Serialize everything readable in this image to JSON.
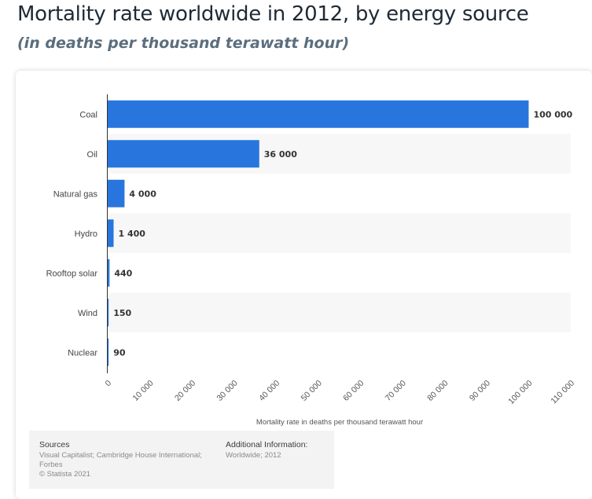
{
  "header": {
    "title": "Mortality rate worldwide in 2012, by energy source",
    "subtitle": "(in deaths per thousand terawatt hour)"
  },
  "chart_data": {
    "type": "bar",
    "orientation": "horizontal",
    "categories": [
      "Coal",
      "Oil",
      "Natural gas",
      "Hydro",
      "Rooftop solar",
      "Wind",
      "Nuclear"
    ],
    "values": [
      100000,
      36000,
      4000,
      1400,
      440,
      150,
      90
    ],
    "value_labels": [
      "100 000",
      "36 000",
      "4 000",
      "1 400",
      "440",
      "150",
      "90"
    ],
    "xlabel": "Mortality rate in deaths per thousand terawatt hour",
    "xlim": [
      0,
      110000
    ],
    "xticks": [
      0,
      10000,
      20000,
      30000,
      40000,
      50000,
      60000,
      70000,
      80000,
      90000,
      100000,
      110000
    ],
    "xtick_labels": [
      "0",
      "10 000",
      "20 000",
      "30 000",
      "40 000",
      "50 000",
      "60 000",
      "70 000",
      "80 000",
      "90 000",
      "100 000",
      "110 000"
    ],
    "bar_color": "#2876dd",
    "stripe_color": "#f7f7f7"
  },
  "footer": {
    "sources_heading": "Sources",
    "sources_lines": [
      "Visual Capitalist; Cambridge House International;",
      "Forbes",
      "© Statista 2021"
    ],
    "additional_heading": "Additional Information:",
    "additional_text": "Worldwide; 2012"
  }
}
